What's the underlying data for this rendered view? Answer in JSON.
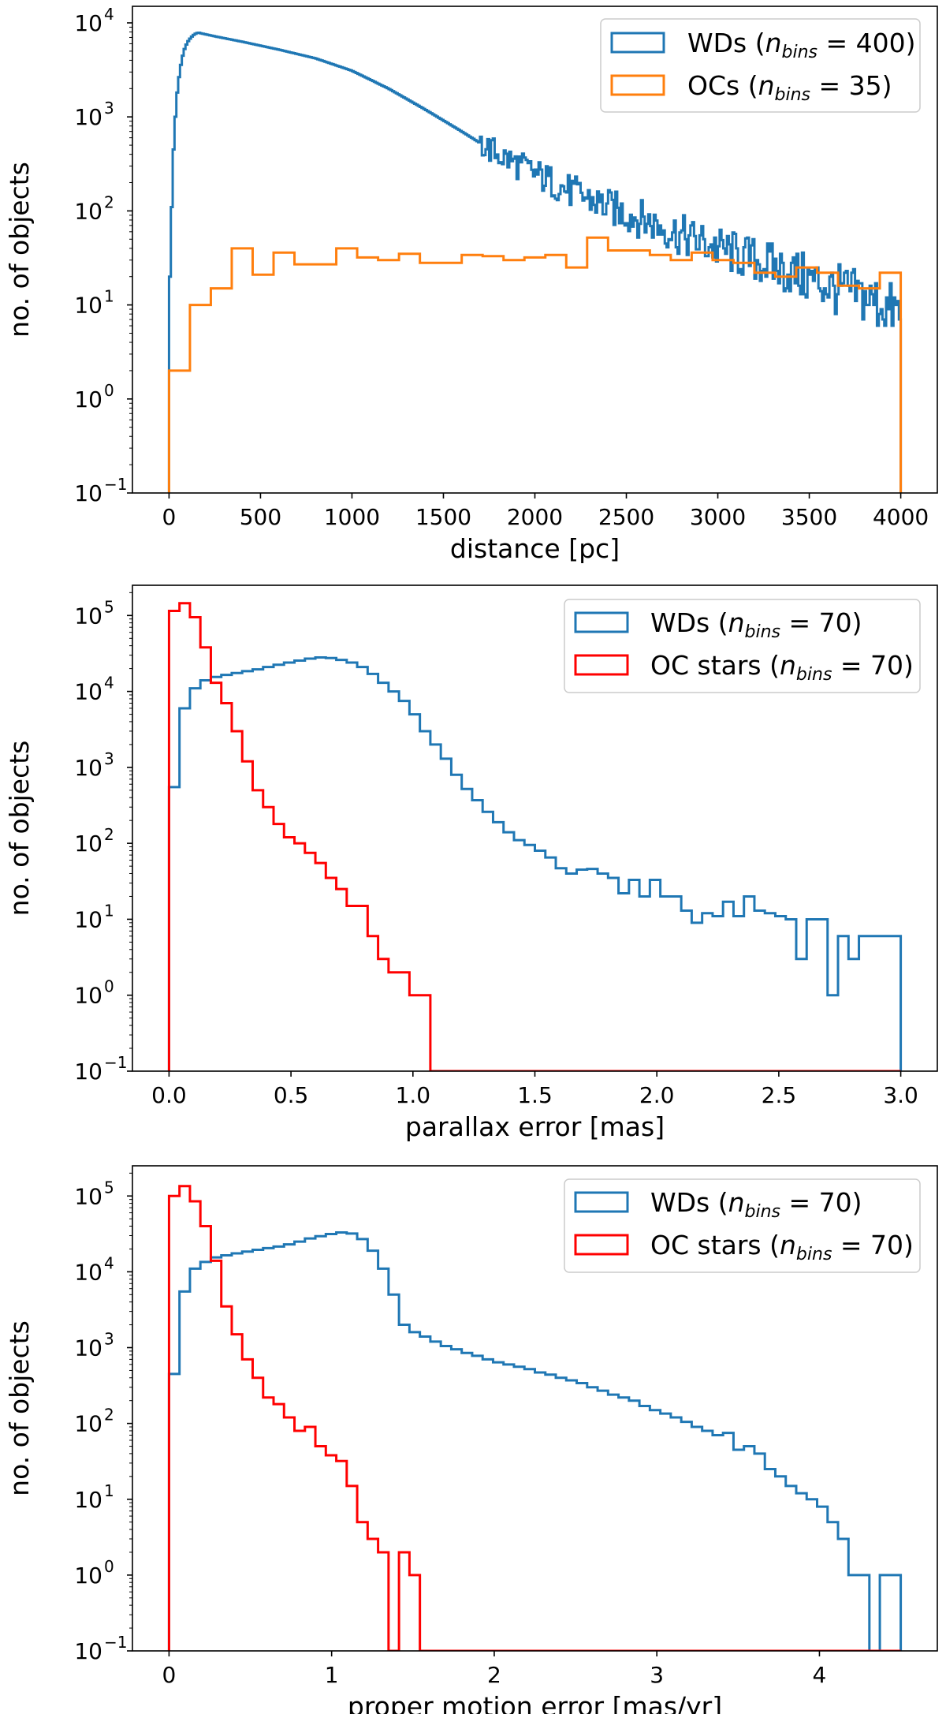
{
  "chart_data": [
    {
      "type": "histogram",
      "scale": "log",
      "xlabel": "distance [pc]",
      "ylabel": "no. of objects",
      "xlim": [
        -200,
        4200
      ],
      "ylim": [
        0.1,
        15000
      ],
      "xticks": [
        0,
        500,
        1000,
        1500,
        2000,
        2500,
        3000,
        3500,
        4000
      ],
      "xtick_labels": [
        "0",
        "500",
        "1000",
        "1500",
        "2000",
        "2500",
        "3000",
        "3500",
        "4000"
      ],
      "yticks": [
        0.1,
        1,
        10,
        100,
        1000,
        10000
      ],
      "ytick_labels": [
        {
          "base": "10",
          "exp": "−1"
        },
        {
          "base": "10",
          "exp": "0"
        },
        {
          "base": "10",
          "exp": "1"
        },
        {
          "base": "10",
          "exp": "2"
        },
        {
          "base": "10",
          "exp": "3"
        },
        {
          "base": "10",
          "exp": "4"
        }
      ],
      "legend_position": "top-right",
      "series": [
        {
          "name": "WDs",
          "label_prefix": "WDs (",
          "label_nbins": "n",
          "label_sub": "bins",
          "label_suffix": " = 400)",
          "color": "#1f77b4",
          "n_bins": 400,
          "edges_range": [
            0,
            4000
          ],
          "values_mode": "anchors",
          "anchors": [
            [
              0,
              0.8
            ],
            [
              5,
              20
            ],
            [
              15,
              110
            ],
            [
              25,
              450
            ],
            [
              40,
              1500
            ],
            [
              60,
              3200
            ],
            [
              80,
              5000
            ],
            [
              100,
              6200
            ],
            [
              120,
              7000
            ],
            [
              140,
              7600
            ],
            [
              160,
              7900
            ],
            [
              180,
              7700
            ],
            [
              250,
              7200
            ],
            [
              400,
              6300
            ],
            [
              600,
              5200
            ],
            [
              800,
              4200
            ],
            [
              1000,
              3100
            ],
            [
              1200,
              2000
            ],
            [
              1400,
              1200
            ],
            [
              1600,
              700
            ],
            [
              1800,
              400
            ],
            [
              2000,
              250
            ],
            [
              2200,
              160
            ],
            [
              2400,
              110
            ],
            [
              2600,
              80
            ],
            [
              2800,
              55
            ],
            [
              3000,
              40
            ],
            [
              3200,
              30
            ],
            [
              3400,
              22
            ],
            [
              3600,
              16
            ],
            [
              3800,
              12
            ],
            [
              4000,
              8
            ]
          ],
          "noise_start": 1700,
          "noise_amp": 0.35
        },
        {
          "name": "OCs",
          "label_prefix": "OCs (",
          "label_nbins": "n",
          "label_sub": "bins",
          "label_suffix": " = 35)",
          "color": "#ff7f0e",
          "n_bins": 35,
          "edges_range": [
            0,
            4000
          ],
          "values": [
            2,
            10,
            15,
            40,
            21,
            36,
            27,
            27,
            40,
            32,
            30,
            35,
            28,
            28,
            34,
            33,
            30,
            32,
            34,
            25,
            52,
            38,
            38,
            34,
            30,
            36,
            30,
            28,
            22,
            20,
            25,
            22,
            16,
            15,
            22
          ]
        }
      ]
    },
    {
      "type": "histogram",
      "scale": "log",
      "xlabel": "parallax error [mas]",
      "ylabel": "no. of objects",
      "xlim": [
        -0.15,
        3.15
      ],
      "ylim": [
        0.1,
        250000
      ],
      "xticks": [
        0,
        0.5,
        1.0,
        1.5,
        2.0,
        2.5,
        3.0
      ],
      "xtick_labels": [
        "0.0",
        "0.5",
        "1.0",
        "1.5",
        "2.0",
        "2.5",
        "3.0"
      ],
      "yticks": [
        0.1,
        1,
        10,
        100,
        1000,
        10000,
        100000
      ],
      "ytick_labels": [
        {
          "base": "10",
          "exp": "−1"
        },
        {
          "base": "10",
          "exp": "0"
        },
        {
          "base": "10",
          "exp": "1"
        },
        {
          "base": "10",
          "exp": "2"
        },
        {
          "base": "10",
          "exp": "3"
        },
        {
          "base": "10",
          "exp": "4"
        },
        {
          "base": "10",
          "exp": "5"
        }
      ],
      "legend_position": "top-right",
      "series": [
        {
          "name": "WDs",
          "label_prefix": "WDs (",
          "label_nbins": "n",
          "label_sub": "bins",
          "label_suffix": " = 70)",
          "color": "#1f77b4",
          "n_bins": 70,
          "edges_range": [
            0,
            3.0
          ],
          "values": [
            550,
            6000,
            11000,
            14000,
            15500,
            16500,
            17500,
            18500,
            19500,
            21000,
            22500,
            24000,
            25500,
            27000,
            28000,
            27500,
            26000,
            24000,
            21000,
            17000,
            13000,
            10000,
            7500,
            5000,
            3000,
            2000,
            1300,
            800,
            520,
            370,
            260,
            190,
            140,
            110,
            95,
            80,
            65,
            47,
            40,
            45,
            46,
            40,
            35,
            22,
            33,
            20,
            33,
            20,
            20,
            13,
            9,
            12,
            11,
            17,
            11,
            20,
            13,
            12,
            11,
            10,
            3,
            10,
            10,
            1,
            6,
            3,
            6,
            6,
            6,
            6
          ]
        },
        {
          "name": "OC stars",
          "label_prefix": "OC stars (",
          "label_nbins": "n",
          "label_sub": "bins",
          "label_suffix": " = 70)",
          "color": "#ff0000",
          "n_bins": 70,
          "edges_range": [
            0,
            3.0
          ],
          "values": [
            115000,
            145000,
            95000,
            38000,
            13000,
            7000,
            3000,
            1200,
            500,
            300,
            180,
            120,
            100,
            75,
            55,
            35,
            25,
            15,
            15,
            6,
            3,
            2,
            2,
            1,
            1,
            0,
            0,
            0,
            0,
            0,
            0,
            0,
            0,
            0,
            0,
            0,
            0,
            0,
            0,
            0,
            0,
            0,
            0,
            0,
            0,
            0,
            0,
            0,
            0,
            0,
            0,
            0,
            0,
            0,
            0,
            0,
            0,
            0,
            0,
            0,
            0,
            0,
            0,
            0,
            0,
            0,
            0,
            0,
            0,
            0
          ]
        }
      ]
    },
    {
      "type": "histogram",
      "scale": "log",
      "xlabel": "proper motion error [mas/yr]",
      "ylabel": "no. of objects",
      "xlim": [
        -0.225,
        4.725
      ],
      "ylim": [
        0.1,
        250000
      ],
      "xticks": [
        0,
        1,
        2,
        3,
        4
      ],
      "xtick_labels": [
        "0",
        "1",
        "2",
        "3",
        "4"
      ],
      "yticks": [
        0.1,
        1,
        10,
        100,
        1000,
        10000,
        100000
      ],
      "ytick_labels": [
        {
          "base": "10",
          "exp": "−1"
        },
        {
          "base": "10",
          "exp": "0"
        },
        {
          "base": "10",
          "exp": "1"
        },
        {
          "base": "10",
          "exp": "2"
        },
        {
          "base": "10",
          "exp": "3"
        },
        {
          "base": "10",
          "exp": "4"
        },
        {
          "base": "10",
          "exp": "5"
        }
      ],
      "legend_position": "top-right",
      "series": [
        {
          "name": "WDs",
          "label_prefix": "WDs (",
          "label_nbins": "n",
          "label_sub": "bins",
          "label_suffix": " = 70)",
          "color": "#1f77b4",
          "n_bins": 70,
          "edges_range": [
            0,
            4.5
          ],
          "values": [
            450,
            5500,
            11000,
            13500,
            15500,
            16500,
            17500,
            18500,
            19500,
            20500,
            21500,
            23000,
            25000,
            27500,
            29500,
            31500,
            33000,
            32000,
            27000,
            19000,
            11000,
            5000,
            2000,
            1600,
            1400,
            1200,
            1050,
            950,
            850,
            780,
            700,
            640,
            600,
            560,
            520,
            470,
            440,
            400,
            370,
            340,
            300,
            270,
            240,
            220,
            200,
            170,
            150,
            135,
            120,
            105,
            90,
            80,
            70,
            75,
            45,
            50,
            40,
            25,
            20,
            15,
            12,
            10,
            8,
            5,
            3,
            1,
            1,
            0,
            1,
            1
          ]
        },
        {
          "name": "OC stars",
          "label_prefix": "OC stars (",
          "label_nbins": "n",
          "label_sub": "bins",
          "label_suffix": " = 70)",
          "color": "#ff0000",
          "n_bins": 70,
          "edges_range": [
            0,
            4.5
          ],
          "values": [
            100000,
            135000,
            85000,
            40000,
            14000,
            3500,
            1500,
            700,
            400,
            220,
            180,
            120,
            80,
            90,
            50,
            38,
            32,
            15,
            5,
            3,
            2,
            0,
            2,
            1,
            0,
            0,
            0,
            0,
            0,
            0,
            0,
            0,
            0,
            0,
            0,
            0,
            0,
            0,
            0,
            0,
            0,
            0,
            0,
            0,
            0,
            0,
            0,
            0,
            0,
            0,
            0,
            0,
            0,
            0,
            0,
            0,
            0,
            0,
            0,
            0,
            0,
            0,
            0,
            0,
            0,
            0,
            0,
            0,
            0,
            0
          ]
        }
      ]
    }
  ]
}
